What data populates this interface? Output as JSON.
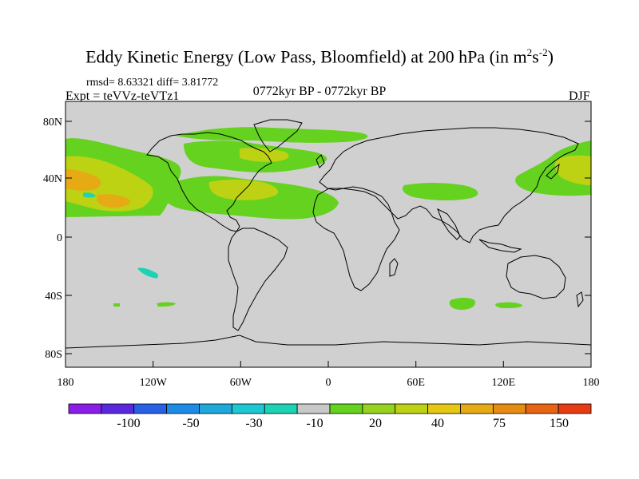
{
  "title_main": "Eddy Kinetic Energy (Low Pass, Bloomfield) at 200 hPa (in m",
  "title_sup1": "2",
  "title_mid": "s",
  "title_sup2": "-2",
  "title_end": ")",
  "stats": "rmsd= 8.63321  diff= 3.81772",
  "experiment": "Expt = teVVz-teVTz1",
  "period": "0772kyr BP - 0772kyr BP",
  "season": "DJF",
  "map": {
    "lon_range": [
      -180,
      180
    ],
    "lat_range": [
      -90,
      90
    ],
    "background_color": "#d0d0d0",
    "lat_ticks": [
      "80N",
      "40N",
      "0",
      "40S",
      "80S"
    ],
    "lon_ticks": [
      "180",
      "120W",
      "60W",
      "0",
      "60E",
      "120E",
      "180"
    ]
  },
  "colorbar": {
    "colors": [
      "#8a1ee6",
      "#5a28dc",
      "#2860e6",
      "#1e8ce6",
      "#1ea8dc",
      "#1ec8d2",
      "#1ed2b4",
      "#c8c8c8",
      "#64d21e",
      "#96d21e",
      "#bed214",
      "#e6c814",
      "#e6aa14",
      "#e68c14",
      "#e66414",
      "#e63c14"
    ],
    "labels": [
      "-100",
      "-50",
      "-30",
      "-10",
      "20",
      "40",
      "75",
      "150"
    ]
  },
  "icons": [
    "world-coastline"
  ]
}
